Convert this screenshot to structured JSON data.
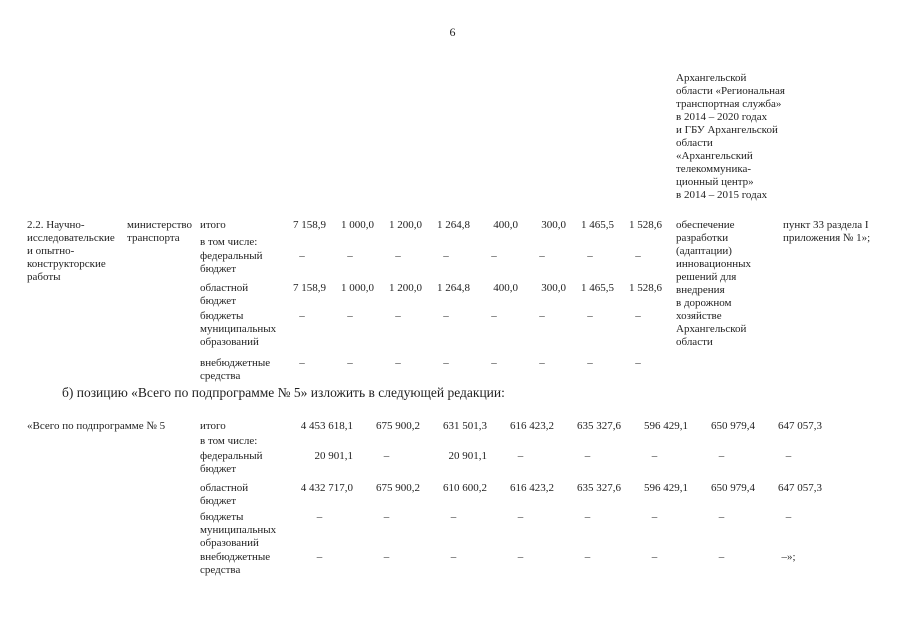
{
  "page": {
    "number": "6"
  },
  "colors": {
    "text": "#1f1f1f",
    "background": "#ffffff"
  },
  "continuation_block": {
    "text": "Архангельской\nобласти «Региональная\nтранспортная служба»\nв 2014 – 2020 годах\nи ГБУ Архангельской\nобласти\n«Архангельский\nтелекоммуника-\nционный центр»\nв 2014 – 2015 годах"
  },
  "table1": {
    "item_label": "2.2. Научно-\nисследовательские\nи опытно-\nконструкторские\nработы",
    "executor": "министерство\nтранспорта",
    "rows": [
      {
        "label": "итого",
        "values": [
          "7 158,9",
          "1 000,0",
          "1 200,0",
          "1 264,8",
          "400,0",
          "300,0",
          "1 465,5",
          "1 528,6"
        ]
      },
      {
        "label": "в том числе:",
        "values": []
      },
      {
        "label": "федеральный бюджет",
        "values": [
          "–",
          "–",
          "–",
          "–",
          "–",
          "–",
          "–",
          "–"
        ]
      },
      {
        "label": "областной бюджет",
        "values": [
          "7 158,9",
          "1 000,0",
          "1 200,0",
          "1 264,8",
          "400,0",
          "300,0",
          "1 465,5",
          "1 528,6"
        ]
      },
      {
        "label": "бюджеты муниципальных образований",
        "values": [
          "–",
          "–",
          "–",
          "–",
          "–",
          "–",
          "–",
          "–"
        ]
      },
      {
        "label": "внебюджетные средства",
        "values": [
          "–",
          "–",
          "–",
          "–",
          "–",
          "–",
          "–",
          "–"
        ]
      }
    ],
    "expected_result": "обеспечение\nразработки\n(адаптации)\nинновационных\nрешений для\nвнедрения\nв дорожном\nхозяйстве\nАрхангельской\nобласти",
    "reference": "пункт 33 раздела I\nприложения № 1»;"
  },
  "amendment_intro": "б) позицию «Всего по подпрограмме № 5» изложить в следующей редакции:",
  "table2": {
    "item_label": "«Всего по подпрограмме № 5",
    "rows": [
      {
        "label": "итого",
        "values": [
          "4 453 618,1",
          "675 900,2",
          "631 501,3",
          "616 423,2",
          "635 327,6",
          "596 429,1",
          "650 979,4",
          "647 057,3"
        ]
      },
      {
        "label": "в том числе:",
        "values": []
      },
      {
        "label": "федеральный бюджет",
        "values": [
          "20 901,1",
          "–",
          "20 901,1",
          "–",
          "–",
          "–",
          "–",
          "–"
        ]
      },
      {
        "label": "областной бюджет",
        "values": [
          "4 432 717,0",
          "675 900,2",
          "610 600,2",
          "616 423,2",
          "635 327,6",
          "596 429,1",
          "650 979,4",
          "647 057,3"
        ]
      },
      {
        "label": "бюджеты муниципальных образований",
        "values": [
          "–",
          "–",
          "–",
          "–",
          "–",
          "–",
          "–",
          "–"
        ]
      },
      {
        "label": "внебюджетные средства",
        "values": [
          "–",
          "–",
          "–",
          "–",
          "–",
          "–",
          "–",
          "–»;"
        ]
      }
    ]
  }
}
